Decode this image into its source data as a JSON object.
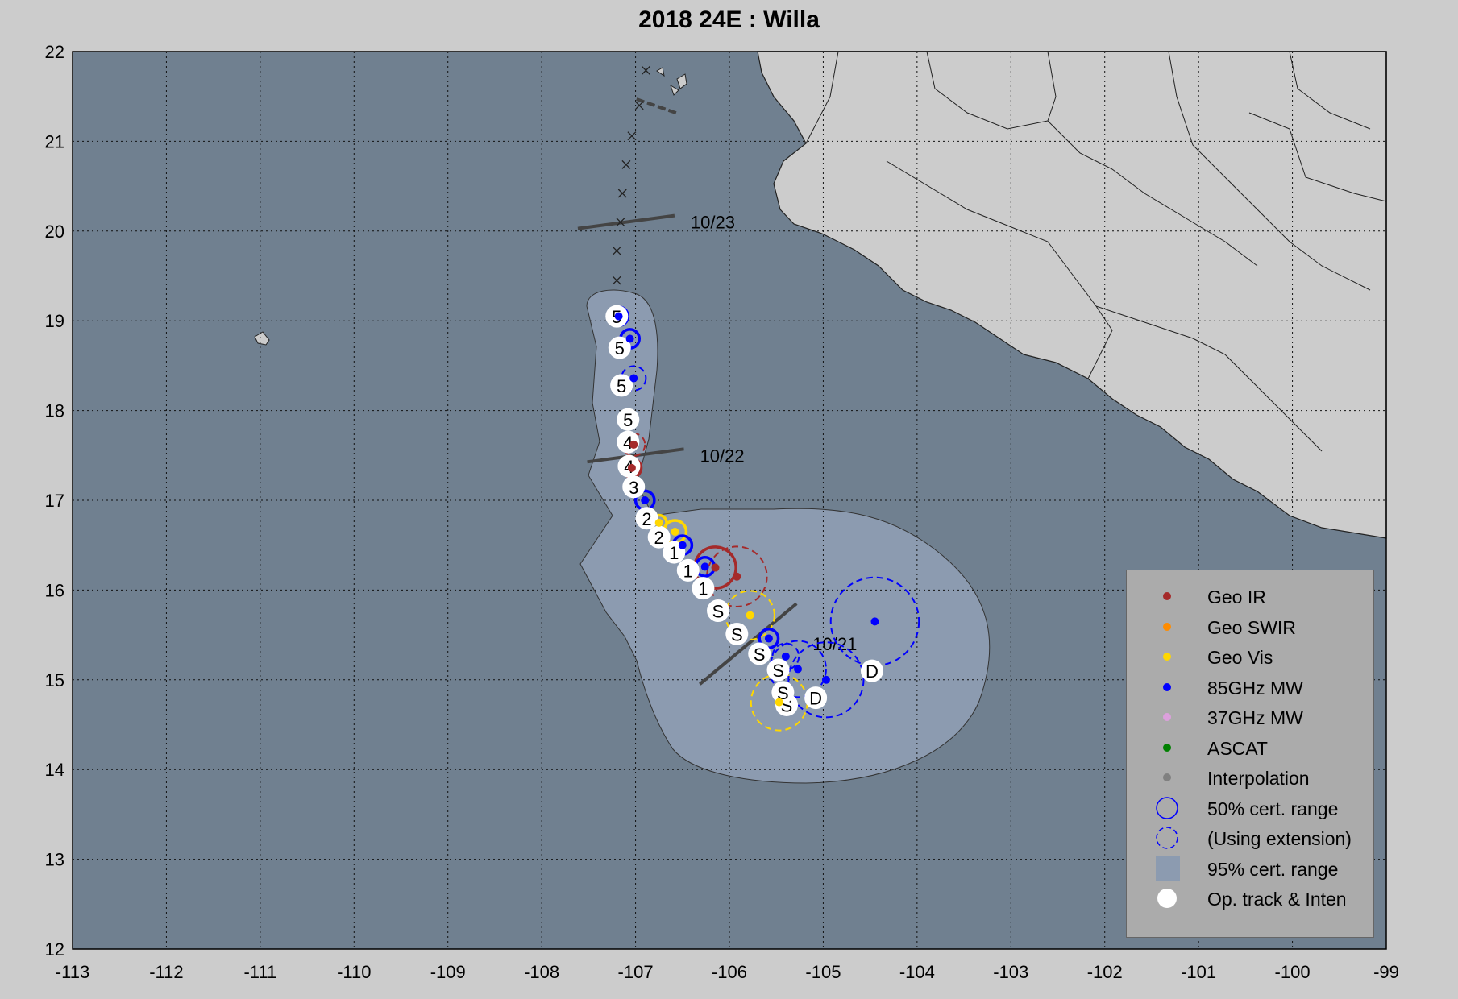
{
  "title": "2018  24E :  Willa",
  "map": {
    "xlim": [
      -113,
      -99
    ],
    "ylim": [
      12,
      22
    ],
    "x_ticks": [
      "-113",
      "-112",
      "-111",
      "-110",
      "-109",
      "-108",
      "-107",
      "-106",
      "-105",
      "-104",
      "-103",
      "-102",
      "-101",
      "-100",
      "-99"
    ],
    "y_ticks": [
      "12",
      "13",
      "14",
      "15",
      "16",
      "17",
      "18",
      "19",
      "20",
      "21",
      "22"
    ],
    "grid": true,
    "colors": {
      "ocean": "#708090",
      "land": "#cccccc",
      "cone": "#8c9bb0",
      "geo_ir": "#a52a2a",
      "geo_swir": "#ff8c00",
      "geo_vis": "#ffd700",
      "mw85": "#0000ff",
      "mw37": "#dda0dd",
      "ascat": "#008000",
      "interp": "#808080",
      "track": "#ffffff"
    }
  },
  "date_labels": [
    {
      "text": "10/23",
      "lon": -107.1,
      "lat": 20.1
    },
    {
      "text": "10/22",
      "lon": -107.0,
      "lat": 17.5
    },
    {
      "text": "10/21",
      "lon": -105.8,
      "lat": 15.4
    }
  ],
  "track": [
    {
      "lon": -104.48,
      "lat": 15.1,
      "label": "D"
    },
    {
      "lon": -105.08,
      "lat": 14.8,
      "label": "D"
    },
    {
      "lon": -105.39,
      "lat": 14.72,
      "label": "S"
    },
    {
      "lon": -105.43,
      "lat": 14.86,
      "label": "S"
    },
    {
      "lon": -105.48,
      "lat": 15.11,
      "label": "S"
    },
    {
      "lon": -105.68,
      "lat": 15.29,
      "label": "S"
    },
    {
      "lon": -105.92,
      "lat": 15.51,
      "label": "S"
    },
    {
      "lon": -106.12,
      "lat": 15.77,
      "label": "S"
    },
    {
      "lon": -106.28,
      "lat": 16.02,
      "label": "1"
    },
    {
      "lon": -106.44,
      "lat": 16.22,
      "label": "1"
    },
    {
      "lon": -106.59,
      "lat": 16.42,
      "label": "1"
    },
    {
      "lon": -106.75,
      "lat": 16.59,
      "label": "2"
    },
    {
      "lon": -106.88,
      "lat": 16.8,
      "label": "2"
    },
    {
      "lon": -107.02,
      "lat": 17.15,
      "label": "3"
    },
    {
      "lon": -107.07,
      "lat": 17.38,
      "label": "4"
    },
    {
      "lon": -107.08,
      "lat": 17.65,
      "label": "4"
    },
    {
      "lon": -107.08,
      "lat": 17.9,
      "label": "5"
    },
    {
      "lon": -107.15,
      "lat": 18.28,
      "label": "5"
    },
    {
      "lon": -107.17,
      "lat": 18.7,
      "label": "5"
    },
    {
      "lon": -107.2,
      "lat": 19.05,
      "label": "5"
    }
  ],
  "forecast_points": [
    {
      "lon": -107.2,
      "lat": 19.45
    },
    {
      "lon": -107.2,
      "lat": 19.78
    },
    {
      "lon": -107.16,
      "lat": 20.1
    },
    {
      "lon": -107.14,
      "lat": 20.42
    },
    {
      "lon": -107.1,
      "lat": 20.74
    },
    {
      "lon": -107.04,
      "lat": 21.06
    },
    {
      "lon": -106.96,
      "lat": 21.4
    },
    {
      "lon": -106.89,
      "lat": 21.79
    }
  ],
  "fixes": [
    {
      "type": "Geo IR",
      "lon": -106.15,
      "lat": 16.25,
      "r": 0.22,
      "extension": false
    },
    {
      "type": "Geo IR",
      "lon": -105.92,
      "lat": 16.15,
      "r": 0.32,
      "extension": true
    },
    {
      "type": "Geo IR",
      "lon": -107.04,
      "lat": 17.36,
      "r": 0.1,
      "extension": false
    },
    {
      "type": "Geo IR",
      "lon": -107.02,
      "lat": 17.62,
      "r": 0.12,
      "extension": true
    },
    {
      "type": "Geo Vis",
      "lon": -106.75,
      "lat": 16.75,
      "r": 0.08,
      "extension": false
    },
    {
      "type": "Geo Vis",
      "lon": -106.58,
      "lat": 16.65,
      "r": 0.12,
      "extension": false
    },
    {
      "type": "Geo Vis",
      "lon": -105.78,
      "lat": 15.72,
      "r": 0.26,
      "extension": true
    },
    {
      "type": "Geo Vis",
      "lon": -105.47,
      "lat": 14.75,
      "r": 0.3,
      "extension": true
    },
    {
      "type": "85GHz MW",
      "lon": -107.18,
      "lat": 19.05,
      "r": 0.1,
      "extension": false
    },
    {
      "type": "85GHz MW",
      "lon": -107.06,
      "lat": 18.8,
      "r": 0.1,
      "extension": false
    },
    {
      "type": "85GHz MW",
      "lon": -107.02,
      "lat": 18.36,
      "r": 0.13,
      "extension": true
    },
    {
      "type": "85GHz MW",
      "lon": -106.9,
      "lat": 17.0,
      "r": 0.1,
      "extension": false
    },
    {
      "type": "85GHz MW",
      "lon": -106.5,
      "lat": 16.5,
      "r": 0.1,
      "extension": false
    },
    {
      "type": "85GHz MW",
      "lon": -106.26,
      "lat": 16.26,
      "r": 0.1,
      "extension": false
    },
    {
      "type": "85GHz MW",
      "lon": -105.58,
      "lat": 15.46,
      "r": 0.1,
      "extension": false
    },
    {
      "type": "85GHz MW",
      "lon": -105.4,
      "lat": 15.26,
      "r": 0.14,
      "extension": true
    },
    {
      "type": "85GHz MW",
      "lon": -105.27,
      "lat": 15.12,
      "r": 0.3,
      "extension": true
    },
    {
      "type": "85GHz MW",
      "lon": -104.97,
      "lat": 15.0,
      "r": 0.4,
      "extension": true
    },
    {
      "type": "85GHz MW",
      "lon": -104.45,
      "lat": 15.65,
      "r": 0.47,
      "extension": true
    }
  ],
  "legend": {
    "items": [
      {
        "label": "Geo IR",
        "symbol": "dot",
        "color": "#a52a2a"
      },
      {
        "label": "Geo SWIR",
        "symbol": "dot",
        "color": "#ff8c00"
      },
      {
        "label": "Geo Vis",
        "symbol": "dot",
        "color": "#ffd700"
      },
      {
        "label": "85GHz MW",
        "symbol": "dot",
        "color": "#0000ff"
      },
      {
        "label": "37GHz MW",
        "symbol": "dot",
        "color": "#dda0dd"
      },
      {
        "label": "ASCAT",
        "symbol": "dot",
        "color": "#008000"
      },
      {
        "label": "Interpolation",
        "symbol": "dot",
        "color": "#808080"
      },
      {
        "label": "50% cert. range",
        "symbol": "circle",
        "color": "#0000ff"
      },
      {
        "label": "(Using extension)",
        "symbol": "dashed-circle",
        "color": "#0000ff"
      },
      {
        "label": "95% cert. range",
        "symbol": "square",
        "color": "#8c9bb0"
      },
      {
        "label": "Op. track & Inten",
        "symbol": "big-dot",
        "color": "#ffffff"
      }
    ]
  }
}
